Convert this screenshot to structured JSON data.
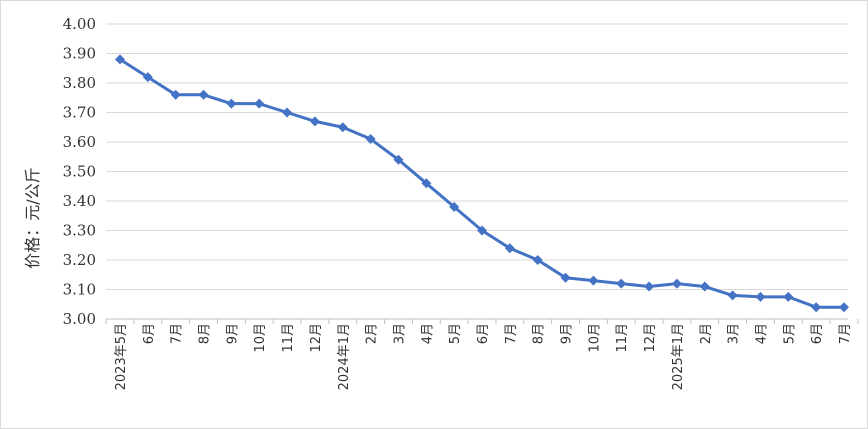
{
  "chart_data": {
    "type": "line",
    "title": "",
    "xlabel": "",
    "ylabel": "价格：元/公斤",
    "ylim": [
      3.0,
      4.0
    ],
    "yticks": [
      "3.00",
      "3.10",
      "3.20",
      "3.30",
      "3.40",
      "3.50",
      "3.60",
      "3.70",
      "3.80",
      "3.90",
      "4.00"
    ],
    "grid": true,
    "legend": "none",
    "categories": [
      "2023年5月",
      "6月",
      "7月",
      "8月",
      "9月",
      "10月",
      "11月",
      "12月",
      "2024年1月",
      "2月",
      "3月",
      "4月",
      "5月",
      "6月",
      "7月",
      "8月",
      "9月",
      "10月",
      "11月",
      "12月",
      "2025年1月",
      "2月",
      "3月",
      "4月",
      "5月",
      "6月",
      "7月"
    ],
    "series": [
      {
        "color": "#4472c4",
        "marker": "diamond",
        "values": [
          3.88,
          3.82,
          3.76,
          3.76,
          3.73,
          3.73,
          3.7,
          3.67,
          3.65,
          3.61,
          3.54,
          3.46,
          3.38,
          3.3,
          3.24,
          3.2,
          3.14,
          3.13,
          3.12,
          3.11,
          3.12,
          3.11,
          3.08,
          3.075,
          3.075,
          3.04,
          3.04
        ]
      }
    ],
    "colors": {
      "grid": "#d9d9d9",
      "axis": "#bfbfbf",
      "line": "#4472c4"
    }
  }
}
